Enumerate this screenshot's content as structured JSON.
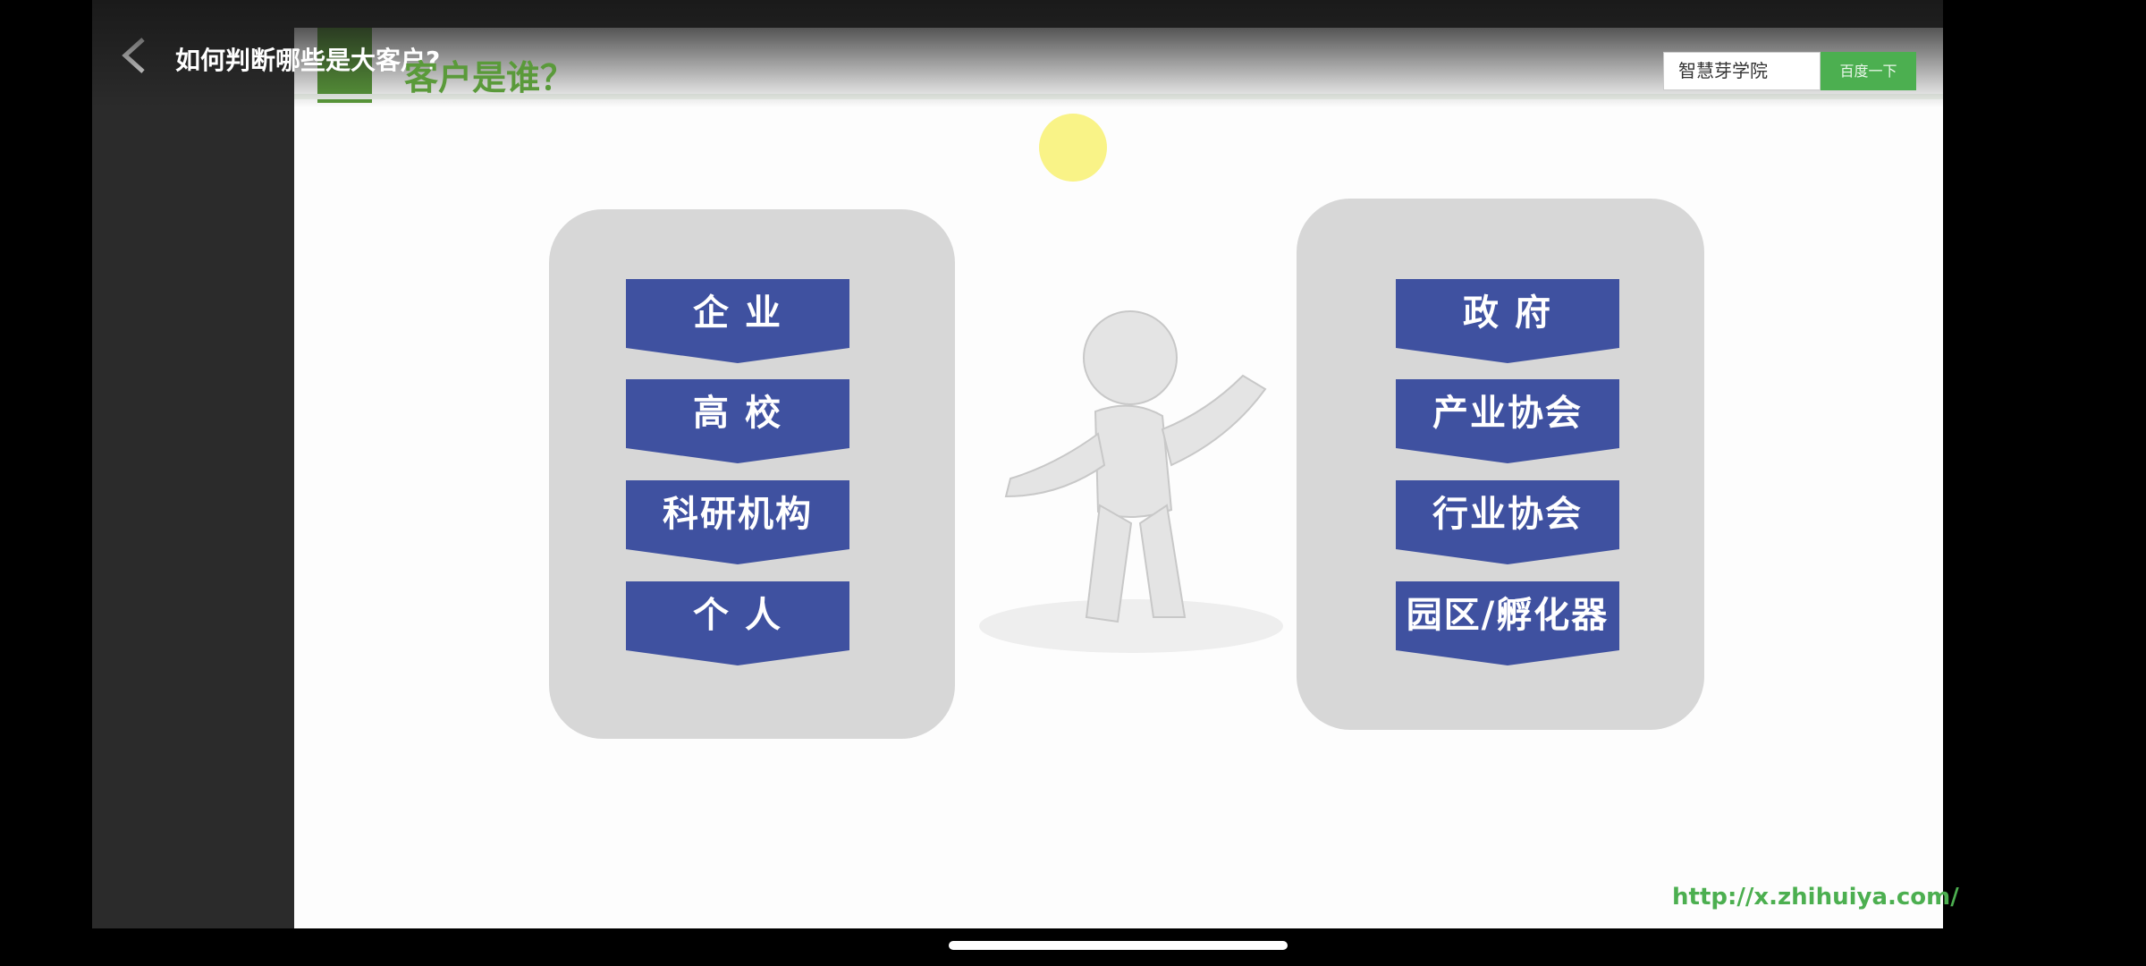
{
  "header": {
    "title": "如何判断哪些是大客户?"
  },
  "slide": {
    "title": "客户是谁？",
    "search_text": "智慧芽学院",
    "search_button": "百度一下",
    "left_items": [
      "企 业",
      "高 校",
      "科研机构",
      "个 人"
    ],
    "right_items": [
      "政 府",
      "产业协会",
      "行业协会",
      "园区/孵化器"
    ],
    "url": "http://x.zhihuiya.com/"
  }
}
